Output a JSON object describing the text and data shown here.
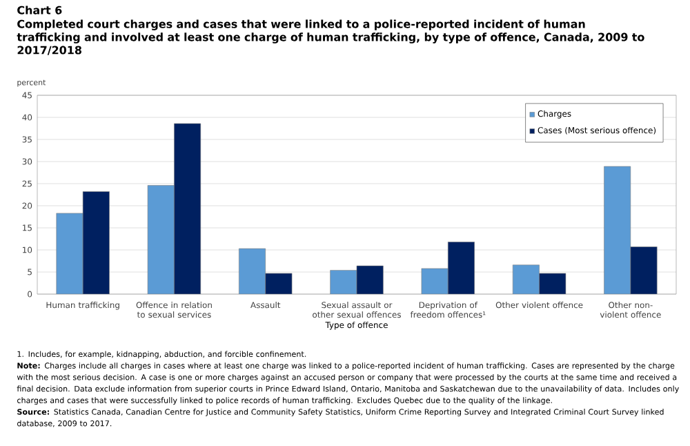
{
  "chart_data": {
    "type": "bar",
    "title": "Chart 6",
    "subtitle": "Completed court charges and cases that were linked to a police-reported incident of human trafficking and involved at least one charge of human trafficking, by type of offence, Canada, 2009 to 2017/2018",
    "ylabel": "percent",
    "xlabel": "Type of offence",
    "categories": [
      "Human trafficking",
      "Offence in relation to sexual services",
      "Assault",
      "Sexual assault or other sexual offences",
      "Deprivation of freedom offences¹",
      "Other violent offence",
      "Other non-violent offence"
    ],
    "series": [
      {
        "name": "Charges",
        "color": "#5b9bd5",
        "values": [
          18.3,
          24.6,
          10.3,
          5.4,
          5.8,
          6.6,
          28.9
        ]
      },
      {
        "name": "Cases (Most serious offence)",
        "color": "#002060",
        "values": [
          23.2,
          38.6,
          4.7,
          6.4,
          11.8,
          4.7,
          10.7
        ]
      }
    ],
    "ylim": [
      0,
      45
    ],
    "yticks": [
      0,
      5,
      10,
      15,
      20,
      25,
      30,
      35,
      40,
      45
    ],
    "grid": "y",
    "legend": "top right",
    "annotations": [
      "1. Includes, for example, kidnapping, abduction, and forcible confinement.",
      "**Note:** Charges include all charges in cases where at least one charge was linked to a police-reported incident of human trafficking. Cases are represented by the charge with the most serious decision. A case is one or more charges against an accused person or company that were processed by the courts at the same time and received a final decision. Data exclude information from superior courts in Prince Edward Island, Ontario, Manitoba and Saskatchewan due to the unavailability of data. Includes only charges and cases that were successfully linked to police records of human trafficking. Excludes Quebec due to the quality of the linkage.",
      "**Source:** Statistics Canada, Canadian Centre for Justice and Community Safety Statistics, Uniform Crime Reporting Survey and Integrated Criminal Court Survey linked database, 2009 to 2017."
    ]
  }
}
